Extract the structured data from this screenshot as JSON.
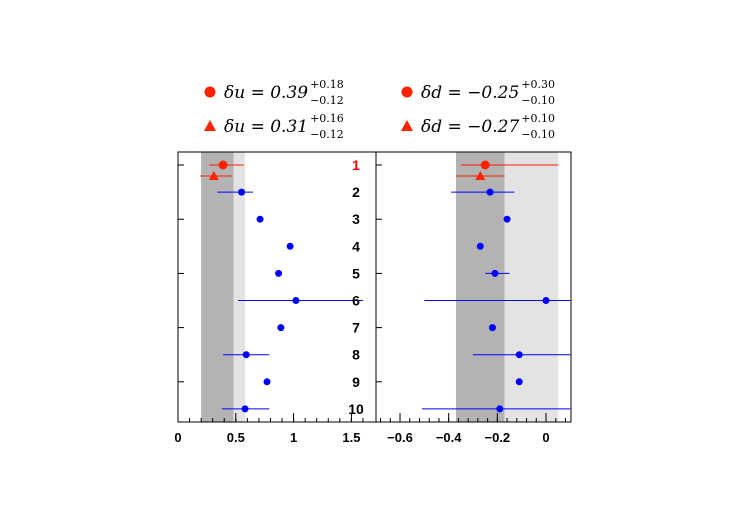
{
  "chart_data": {
    "type": "scatter",
    "legend": [
      {
        "quantity": "u",
        "marker": "circle",
        "color": "#ff2200",
        "text": "δu = 0.39",
        "plus": "+0.18",
        "minus": "−0.12"
      },
      {
        "quantity": "d",
        "marker": "circle",
        "color": "#ff2200",
        "text": "δd = −0.25",
        "plus": "+0.30",
        "minus": "−0.10"
      },
      {
        "quantity": "u",
        "marker": "triangle",
        "color": "#ff2200",
        "text": "δu = 0.31",
        "plus": "+0.16",
        "minus": "−0.12"
      },
      {
        "quantity": "d",
        "marker": "triangle",
        "color": "#ff2200",
        "text": "δd = −0.27",
        "plus": "+0.10",
        "minus": "−0.10"
      }
    ],
    "row_labels": [
      "1",
      "2",
      "3",
      "4",
      "5",
      "6",
      "7",
      "8",
      "9",
      "10"
    ],
    "row_label_colors": [
      "#ff0000",
      "#000000",
      "#000000",
      "#000000",
      "#000000",
      "#000000",
      "#000000",
      "#000000",
      "#000000",
      "#000000"
    ],
    "panels": [
      {
        "name": "delta-u",
        "xlim": [
          0,
          1.6
        ],
        "xticks": [
          0,
          0.5,
          1,
          1.5
        ],
        "xtick_labels": [
          "0",
          "0.5",
          "1",
          "1.5"
        ],
        "dark_band": [
          0.2,
          0.48
        ],
        "light_band": [
          0.48,
          0.58
        ],
        "points": [
          {
            "row": 1,
            "sub": 0,
            "marker": "circle",
            "color": "#ff2200",
            "x": 0.39,
            "lo": 0.27,
            "hi": 0.57
          },
          {
            "row": 1,
            "sub": 1,
            "marker": "triangle",
            "color": "#ff2200",
            "x": 0.31,
            "lo": 0.19,
            "hi": 0.47
          },
          {
            "row": 2,
            "sub": 0,
            "marker": "circle",
            "color": "#0000ff",
            "x": 0.55,
            "lo": 0.34,
            "hi": 0.65
          },
          {
            "row": 3,
            "sub": 0,
            "marker": "circle",
            "color": "#0000ff",
            "x": 0.71,
            "lo": null,
            "hi": null
          },
          {
            "row": 4,
            "sub": 0,
            "marker": "circle",
            "color": "#0000ff",
            "x": 0.97,
            "lo": null,
            "hi": null
          },
          {
            "row": 5,
            "sub": 0,
            "marker": "circle",
            "color": "#0000ff",
            "x": 0.87,
            "lo": null,
            "hi": null
          },
          {
            "row": 6,
            "sub": 0,
            "marker": "circle",
            "color": "#0000ff",
            "x": 1.02,
            "lo": 0.52,
            "hi": 1.6
          },
          {
            "row": 7,
            "sub": 0,
            "marker": "circle",
            "color": "#0000ff",
            "x": 0.89,
            "lo": null,
            "hi": null
          },
          {
            "row": 8,
            "sub": 0,
            "marker": "circle",
            "color": "#0000ff",
            "x": 0.59,
            "lo": 0.39,
            "hi": 0.79
          },
          {
            "row": 9,
            "sub": 0,
            "marker": "circle",
            "color": "#0000ff",
            "x": 0.77,
            "lo": null,
            "hi": null
          },
          {
            "row": 10,
            "sub": 0,
            "marker": "circle",
            "color": "#0000ff",
            "x": 0.58,
            "lo": 0.38,
            "hi": 0.79
          }
        ]
      },
      {
        "name": "delta-d",
        "xlim": [
          -0.8,
          0.1
        ],
        "xticks": [
          -0.6,
          -0.4,
          -0.2,
          0
        ],
        "xtick_labels": [
          "−0.6",
          "−0.4",
          "−0.2",
          "0"
        ],
        "dark_band": [
          -0.37,
          -0.17
        ],
        "light_band": [
          -0.17,
          0.05
        ],
        "points": [
          {
            "row": 1,
            "sub": 0,
            "marker": "circle",
            "color": "#ff2200",
            "x": -0.25,
            "lo": -0.35,
            "hi": 0.05
          },
          {
            "row": 1,
            "sub": 1,
            "marker": "triangle",
            "color": "#ff2200",
            "x": -0.27,
            "lo": -0.37,
            "hi": -0.17
          },
          {
            "row": 2,
            "sub": 0,
            "marker": "circle",
            "color": "#0000ff",
            "x": -0.23,
            "lo": -0.39,
            "hi": -0.13
          },
          {
            "row": 3,
            "sub": 0,
            "marker": "circle",
            "color": "#0000ff",
            "x": -0.16,
            "lo": null,
            "hi": null
          },
          {
            "row": 4,
            "sub": 0,
            "marker": "circle",
            "color": "#0000ff",
            "x": -0.27,
            "lo": null,
            "hi": null
          },
          {
            "row": 5,
            "sub": 0,
            "marker": "circle",
            "color": "#0000ff",
            "x": -0.21,
            "lo": -0.25,
            "hi": -0.15
          },
          {
            "row": 6,
            "sub": 0,
            "marker": "circle",
            "color": "#0000ff",
            "x": 0.0,
            "lo": -0.5,
            "hi": 0.1
          },
          {
            "row": 7,
            "sub": 0,
            "marker": "circle",
            "color": "#0000ff",
            "x": -0.22,
            "lo": null,
            "hi": null
          },
          {
            "row": 8,
            "sub": 0,
            "marker": "circle",
            "color": "#0000ff",
            "x": -0.11,
            "lo": -0.3,
            "hi": 0.1
          },
          {
            "row": 9,
            "sub": 0,
            "marker": "circle",
            "color": "#0000ff",
            "x": -0.11,
            "lo": null,
            "hi": null
          },
          {
            "row": 10,
            "sub": 0,
            "marker": "circle",
            "color": "#0000ff",
            "x": -0.19,
            "lo": -0.51,
            "hi": 0.1
          }
        ]
      }
    ],
    "colors": {
      "dark_band": "#b3b3b3",
      "light_band": "#e3e3e3",
      "axis": "#000000"
    }
  }
}
